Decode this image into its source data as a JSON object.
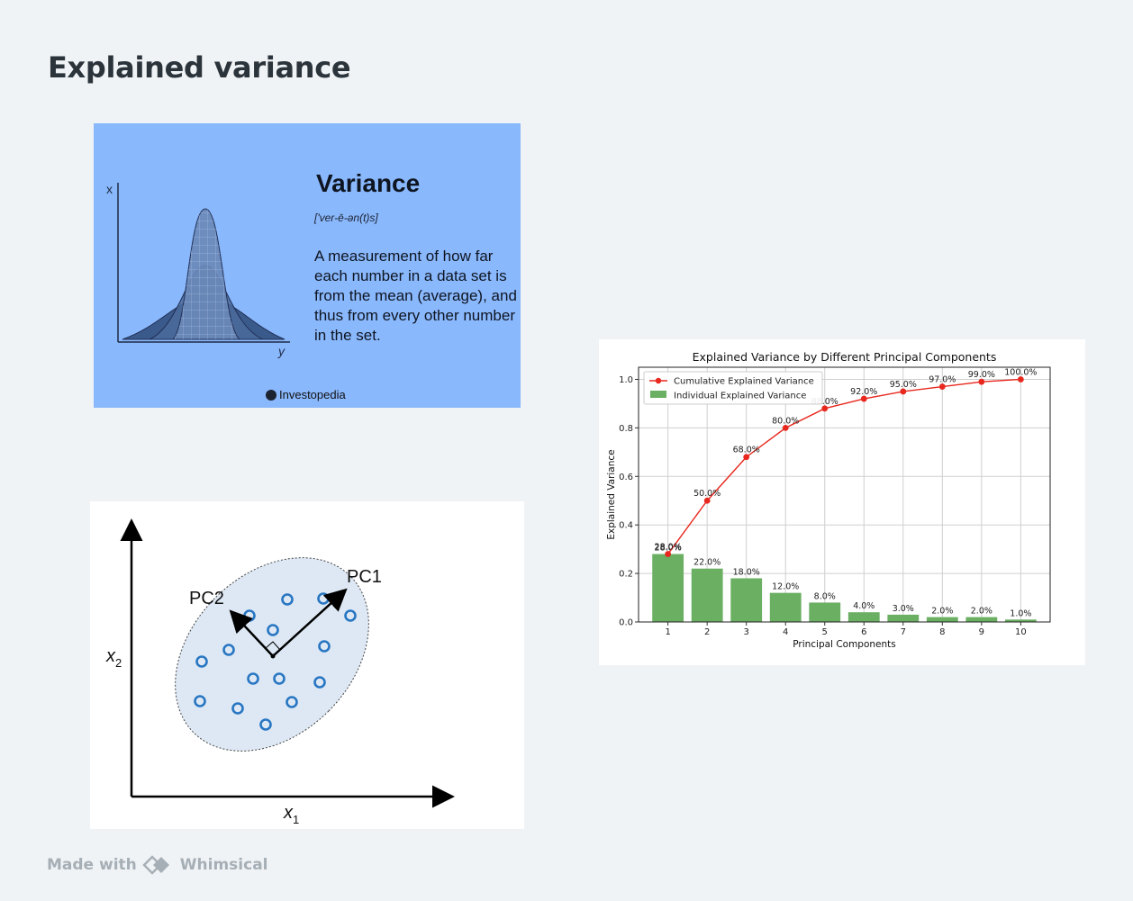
{
  "page": {
    "title": "Explained variance"
  },
  "variance_card": {
    "axis_x": "x",
    "axis_y": "y",
    "heading": "Variance",
    "phonetic": "['ver-ē-ən(t)s]",
    "definition": "A measurement of how far each number in a data set is from the mean (average), and thus from every other number in the set.",
    "brand": "Investopedia"
  },
  "pca_card": {
    "pc1_label": "PC1",
    "pc2_label": "PC2",
    "x_axis_var": "x",
    "x_axis_sub": "1",
    "y_axis_var": "x",
    "y_axis_sub": "2"
  },
  "chart_data": {
    "type": "bar",
    "title": "Explained Variance by Different Principal Components",
    "xlabel": "Principal Components",
    "ylabel": "Explained Variance",
    "categories": [
      "1",
      "2",
      "3",
      "4",
      "5",
      "6",
      "7",
      "8",
      "9",
      "10"
    ],
    "ylim": [
      0,
      1.05
    ],
    "yticks": [
      "0.0",
      "0.2",
      "0.4",
      "0.6",
      "0.8",
      "1.0"
    ],
    "grid": true,
    "legend_position": "top-left",
    "series": [
      {
        "name": "Cumulative Explained Variance",
        "type": "line",
        "color": "#e8281e",
        "values": [
          0.28,
          0.5,
          0.68,
          0.8,
          0.88,
          0.92,
          0.95,
          0.97,
          0.99,
          1.0
        ],
        "labels": [
          "28.0%",
          "50.0%",
          "68.0%",
          "80.0%",
          "88.0%",
          "92.0%",
          "95.0%",
          "97.0%",
          "99.0%",
          "100.0%"
        ]
      },
      {
        "name": "Individual Explained Variance",
        "type": "bar",
        "color": "#6aaf62",
        "values": [
          0.28,
          0.22,
          0.18,
          0.12,
          0.08,
          0.04,
          0.03,
          0.02,
          0.02,
          0.01
        ],
        "labels": [
          "28.0%",
          "22.0%",
          "18.0%",
          "12.0%",
          "8.0%",
          "4.0%",
          "3.0%",
          "2.0%",
          "2.0%",
          "1.0%"
        ]
      }
    ]
  },
  "footer": {
    "made_with": "Made with",
    "brand": "Whimsical",
    "icon": "whimsical-logo-icon"
  }
}
